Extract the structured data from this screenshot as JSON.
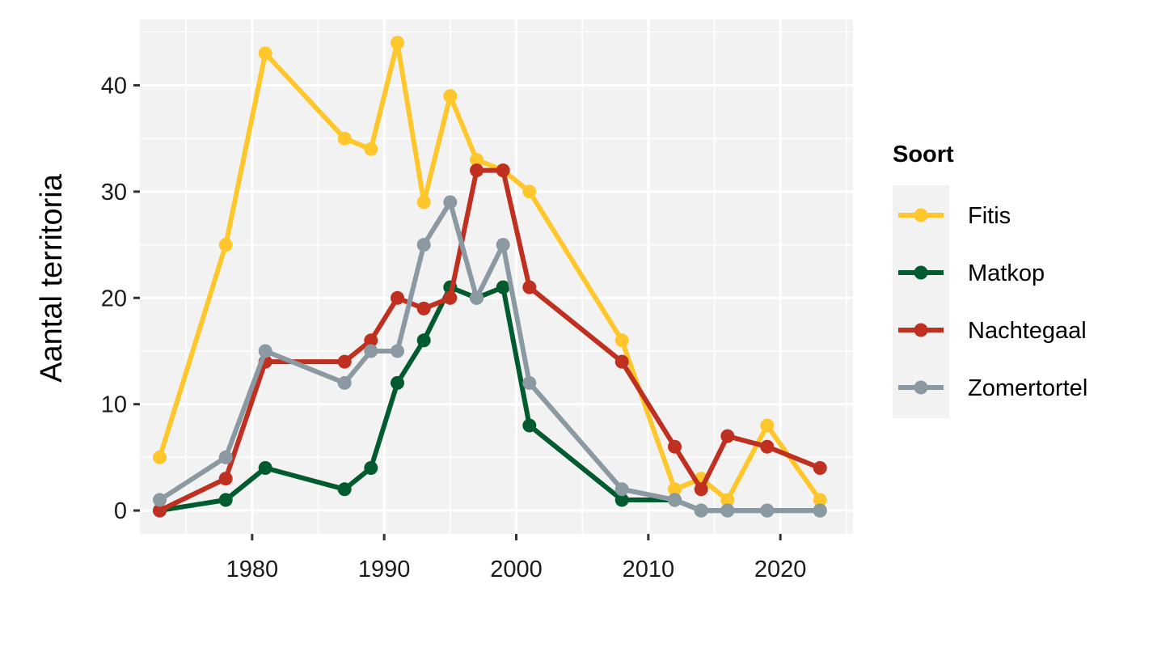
{
  "chart_data": {
    "type": "line",
    "title": "",
    "xlabel": "",
    "ylabel": "Aantal territoria",
    "xlim": [
      1971.5,
      2025.5
    ],
    "ylim": [
      -2.2,
      46.2
    ],
    "x_ticks": [
      1980,
      1990,
      2000,
      2010,
      2020
    ],
    "y_ticks": [
      0,
      10,
      20,
      30,
      40
    ],
    "grid": true,
    "legend": {
      "title": "Soort",
      "position": "right"
    },
    "series": [
      {
        "name": "Fitis",
        "color": "#FFC72C",
        "points": [
          [
            1973,
            5
          ],
          [
            1978,
            25
          ],
          [
            1981,
            43
          ],
          [
            1987,
            35
          ],
          [
            1989,
            34
          ],
          [
            1991,
            44
          ],
          [
            1993,
            29
          ],
          [
            1995,
            39
          ],
          [
            1997,
            33
          ],
          [
            1999,
            32
          ],
          [
            2001,
            30
          ],
          [
            2008,
            16
          ],
          [
            2012,
            2
          ],
          [
            2014,
            3
          ],
          [
            2016,
            1
          ],
          [
            2019,
            8
          ],
          [
            2023,
            1
          ]
        ]
      },
      {
        "name": "Matkop",
        "color": "#005C2F",
        "points": [
          [
            1973,
            0
          ],
          [
            1978,
            1
          ],
          [
            1981,
            4
          ],
          [
            1987,
            2
          ],
          [
            1989,
            4
          ],
          [
            1991,
            12
          ],
          [
            1993,
            16
          ],
          [
            1995,
            21
          ],
          [
            1997,
            20
          ],
          [
            1999,
            21
          ],
          [
            2001,
            8
          ],
          [
            2008,
            1
          ],
          [
            2012,
            1
          ],
          [
            2014,
            0
          ],
          [
            2016,
            0
          ],
          [
            2019,
            0
          ],
          [
            2023,
            0
          ]
        ]
      },
      {
        "name": "Nachtegaal",
        "color": "#C03020",
        "points": [
          [
            1973,
            0
          ],
          [
            1978,
            3
          ],
          [
            1981,
            14
          ],
          [
            1987,
            14
          ],
          [
            1989,
            16
          ],
          [
            1991,
            20
          ],
          [
            1993,
            19
          ],
          [
            1995,
            20
          ],
          [
            1997,
            32
          ],
          [
            1999,
            32
          ],
          [
            2001,
            21
          ],
          [
            2008,
            14
          ],
          [
            2012,
            6
          ],
          [
            2014,
            2
          ],
          [
            2016,
            7
          ],
          [
            2019,
            6
          ],
          [
            2023,
            4
          ]
        ]
      },
      {
        "name": "Zomertortel",
        "color": "#8A99A2",
        "points": [
          [
            1973,
            1
          ],
          [
            1978,
            5
          ],
          [
            1981,
            15
          ],
          [
            1987,
            12
          ],
          [
            1989,
            15
          ],
          [
            1991,
            15
          ],
          [
            1993,
            25
          ],
          [
            1995,
            29
          ],
          [
            1997,
            20
          ],
          [
            1999,
            25
          ],
          [
            2001,
            12
          ],
          [
            2008,
            2
          ],
          [
            2012,
            1
          ],
          [
            2014,
            0
          ],
          [
            2016,
            0
          ],
          [
            2019,
            0
          ],
          [
            2023,
            0
          ]
        ]
      }
    ]
  }
}
